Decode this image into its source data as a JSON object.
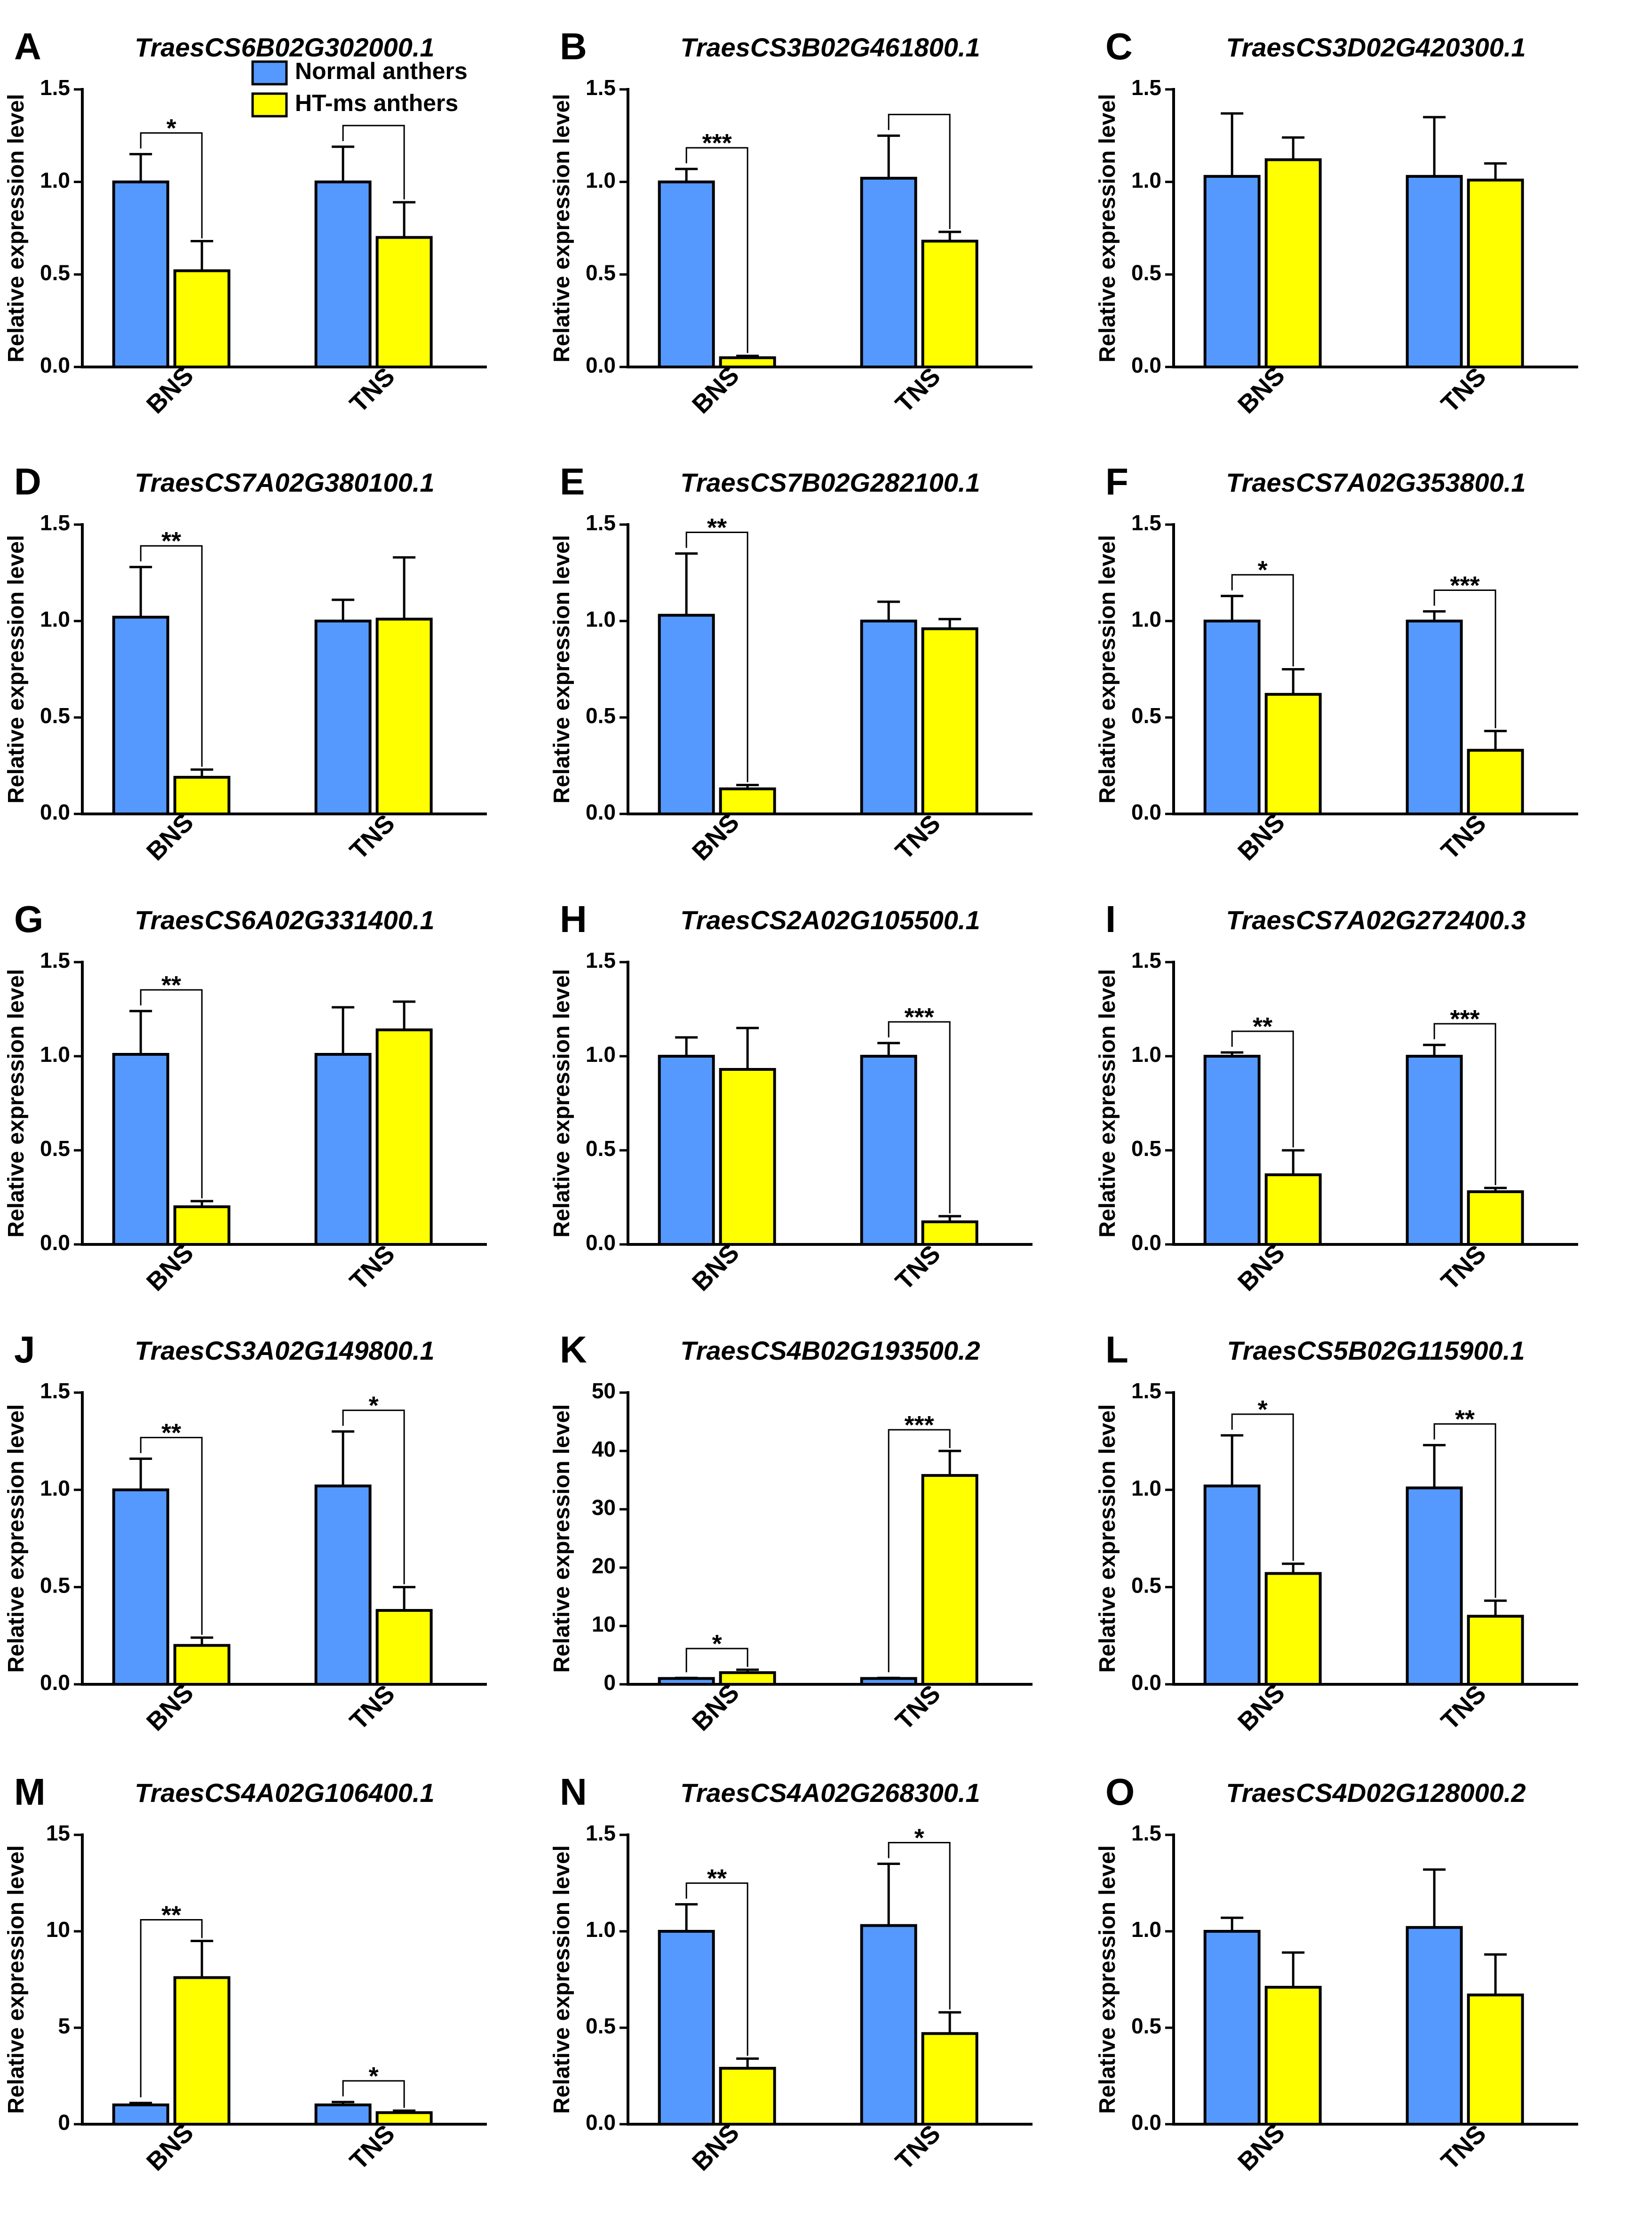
{
  "figure": {
    "legend": [
      {
        "name": "Normal anthers",
        "color": "#5599FF"
      },
      {
        "name": "HT-ms anthers",
        "color": "#FFFF00"
      }
    ],
    "ylabel": "Relative expression level"
  },
  "chart_data": [
    {
      "panel": "A",
      "type": "bar",
      "title": "TraesCS6B02G302000.1",
      "categories": [
        "BNS",
        "TNS"
      ],
      "ylabel": "Relative expression level",
      "ylim": [
        0,
        1.5
      ],
      "yticks": [
        "0.0",
        "0.5",
        "1.0",
        "1.5"
      ],
      "series": [
        {
          "name": "Normal anthers",
          "values": [
            1.0,
            1.0
          ],
          "errors": [
            0.15,
            0.19
          ]
        },
        {
          "name": "HT-ms anthers",
          "values": [
            0.52,
            0.7
          ],
          "errors": [
            0.16,
            0.19
          ]
        }
      ],
      "significance": [
        {
          "group": 0,
          "label": "*"
        },
        {
          "group": 1,
          "label": ""
        }
      ]
    },
    {
      "panel": "B",
      "type": "bar",
      "title": "TraesCS3B02G461800.1",
      "categories": [
        "BNS",
        "TNS"
      ],
      "ylabel": "Relative expression level",
      "ylim": [
        0,
        1.5
      ],
      "yticks": [
        "0.0",
        "0.5",
        "1.0",
        "1.5"
      ],
      "series": [
        {
          "name": "Normal anthers",
          "values": [
            1.0,
            1.02
          ],
          "errors": [
            0.07,
            0.23
          ]
        },
        {
          "name": "HT-ms anthers",
          "values": [
            0.05,
            0.68
          ],
          "errors": [
            0.01,
            0.05
          ]
        }
      ],
      "significance": [
        {
          "group": 0,
          "label": "***"
        },
        {
          "group": 1,
          "label": ""
        }
      ]
    },
    {
      "panel": "C",
      "type": "bar",
      "title": "TraesCS3D02G420300.1",
      "categories": [
        "BNS",
        "TNS"
      ],
      "ylabel": "Relative expression level",
      "ylim": [
        0,
        1.5
      ],
      "yticks": [
        "0.0",
        "0.5",
        "1.0",
        "1.5"
      ],
      "series": [
        {
          "name": "Normal anthers",
          "values": [
            1.03,
            1.03
          ],
          "errors": [
            0.34,
            0.32
          ]
        },
        {
          "name": "HT-ms anthers",
          "values": [
            1.12,
            1.01
          ],
          "errors": [
            0.12,
            0.09
          ]
        }
      ],
      "significance": []
    },
    {
      "panel": "D",
      "type": "bar",
      "title": "TraesCS7A02G380100.1",
      "categories": [
        "BNS",
        "TNS"
      ],
      "ylabel": "Relative expression level",
      "ylim": [
        0,
        1.5
      ],
      "yticks": [
        "0.0",
        "0.5",
        "1.0",
        "1.5"
      ],
      "series": [
        {
          "name": "Normal anthers",
          "values": [
            1.02,
            1.0
          ],
          "errors": [
            0.26,
            0.11
          ]
        },
        {
          "name": "HT-ms anthers",
          "values": [
            0.19,
            1.01
          ],
          "errors": [
            0.04,
            0.32
          ]
        }
      ],
      "significance": [
        {
          "group": 0,
          "label": "**"
        }
      ]
    },
    {
      "panel": "E",
      "type": "bar",
      "title": "TraesCS7B02G282100.1",
      "categories": [
        "BNS",
        "TNS"
      ],
      "ylabel": "Relative expression level",
      "ylim": [
        0,
        1.5
      ],
      "yticks": [
        "0.0",
        "0.5",
        "1.0",
        "1.5"
      ],
      "series": [
        {
          "name": "Normal anthers",
          "values": [
            1.03,
            1.0
          ],
          "errors": [
            0.32,
            0.1
          ]
        },
        {
          "name": "HT-ms anthers",
          "values": [
            0.13,
            0.96
          ],
          "errors": [
            0.02,
            0.05
          ]
        }
      ],
      "significance": [
        {
          "group": 0,
          "label": "**"
        }
      ]
    },
    {
      "panel": "F",
      "type": "bar",
      "title": "TraesCS7A02G353800.1",
      "categories": [
        "BNS",
        "TNS"
      ],
      "ylabel": "Relative expression level",
      "ylim": [
        0,
        1.5
      ],
      "yticks": [
        "0.0",
        "0.5",
        "1.0",
        "1.5"
      ],
      "series": [
        {
          "name": "Normal anthers",
          "values": [
            1.0,
            1.0
          ],
          "errors": [
            0.13,
            0.05
          ]
        },
        {
          "name": "HT-ms anthers",
          "values": [
            0.62,
            0.33
          ],
          "errors": [
            0.13,
            0.1
          ]
        }
      ],
      "significance": [
        {
          "group": 0,
          "label": "*"
        },
        {
          "group": 1,
          "label": "***"
        }
      ]
    },
    {
      "panel": "G",
      "type": "bar",
      "title": "TraesCS6A02G331400.1",
      "categories": [
        "BNS",
        "TNS"
      ],
      "ylabel": "Relative expression level",
      "ylim": [
        0,
        1.5
      ],
      "yticks": [
        "0.0",
        "0.5",
        "1.0",
        "1.5"
      ],
      "series": [
        {
          "name": "Normal anthers",
          "values": [
            1.01,
            1.01
          ],
          "errors": [
            0.23,
            0.25
          ]
        },
        {
          "name": "HT-ms anthers",
          "values": [
            0.2,
            1.14
          ],
          "errors": [
            0.03,
            0.15
          ]
        }
      ],
      "significance": [
        {
          "group": 0,
          "label": "**"
        }
      ]
    },
    {
      "panel": "H",
      "type": "bar",
      "title": "TraesCS2A02G105500.1",
      "categories": [
        "BNS",
        "TNS"
      ],
      "ylabel": "Relative expression level",
      "ylim": [
        0,
        1.5
      ],
      "yticks": [
        "0.0",
        "0.5",
        "1.0",
        "1.5"
      ],
      "series": [
        {
          "name": "Normal anthers",
          "values": [
            1.0,
            1.0
          ],
          "errors": [
            0.1,
            0.07
          ]
        },
        {
          "name": "HT-ms anthers",
          "values": [
            0.93,
            0.12
          ],
          "errors": [
            0.22,
            0.03
          ]
        }
      ],
      "significance": [
        {
          "group": 1,
          "label": "***"
        }
      ]
    },
    {
      "panel": "I",
      "type": "bar",
      "title": "TraesCS7A02G272400.3",
      "categories": [
        "BNS",
        "TNS"
      ],
      "ylabel": "Relative expression level",
      "ylim": [
        0,
        1.5
      ],
      "yticks": [
        "0.0",
        "0.5",
        "1.0",
        "1.5"
      ],
      "series": [
        {
          "name": "Normal anthers",
          "values": [
            1.0,
            1.0
          ],
          "errors": [
            0.02,
            0.06
          ]
        },
        {
          "name": "HT-ms anthers",
          "values": [
            0.37,
            0.28
          ],
          "errors": [
            0.13,
            0.02
          ]
        }
      ],
      "significance": [
        {
          "group": 0,
          "label": "**"
        },
        {
          "group": 1,
          "label": "***"
        }
      ]
    },
    {
      "panel": "J",
      "type": "bar",
      "title": "TraesCS3A02G149800.1",
      "categories": [
        "BNS",
        "TNS"
      ],
      "ylabel": "Relative expression level",
      "ylim": [
        0,
        1.5
      ],
      "yticks": [
        "0.0",
        "0.5",
        "1.0",
        "1.5"
      ],
      "series": [
        {
          "name": "Normal anthers",
          "values": [
            1.0,
            1.02
          ],
          "errors": [
            0.16,
            0.28
          ]
        },
        {
          "name": "HT-ms anthers",
          "values": [
            0.2,
            0.38
          ],
          "errors": [
            0.04,
            0.12
          ]
        }
      ],
      "significance": [
        {
          "group": 0,
          "label": "**"
        },
        {
          "group": 1,
          "label": "*"
        }
      ]
    },
    {
      "panel": "K",
      "type": "bar",
      "title": "TraesCS4B02G193500.2",
      "categories": [
        "BNS",
        "TNS"
      ],
      "ylabel": "Relative expression level",
      "ylim": [
        0,
        50
      ],
      "yticks": [
        "0",
        "10",
        "20",
        "30",
        "40",
        "50"
      ],
      "series": [
        {
          "name": "Normal anthers",
          "values": [
            1.0,
            1.0
          ],
          "errors": [
            0.1,
            0.1
          ]
        },
        {
          "name": "HT-ms anthers",
          "values": [
            2.0,
            35.8
          ],
          "errors": [
            0.5,
            4.2
          ]
        }
      ],
      "significance": [
        {
          "group": 0,
          "label": "*"
        },
        {
          "group": 1,
          "label": "***"
        }
      ]
    },
    {
      "panel": "L",
      "type": "bar",
      "title": "TraesCS5B02G115900.1",
      "categories": [
        "BNS",
        "TNS"
      ],
      "ylabel": "Relative expression level",
      "ylim": [
        0,
        1.5
      ],
      "yticks": [
        "0.0",
        "0.5",
        "1.0",
        "1.5"
      ],
      "series": [
        {
          "name": "Normal anthers",
          "values": [
            1.02,
            1.01
          ],
          "errors": [
            0.26,
            0.22
          ]
        },
        {
          "name": "HT-ms anthers",
          "values": [
            0.57,
            0.35
          ],
          "errors": [
            0.05,
            0.08
          ]
        }
      ],
      "significance": [
        {
          "group": 0,
          "label": "*"
        },
        {
          "group": 1,
          "label": "**"
        }
      ]
    },
    {
      "panel": "M",
      "type": "bar",
      "title": "TraesCS4A02G106400.1",
      "categories": [
        "BNS",
        "TNS"
      ],
      "ylabel": "Relative expression level",
      "ylim": [
        0,
        15
      ],
      "yticks": [
        "0",
        "5",
        "10",
        "15"
      ],
      "series": [
        {
          "name": "Normal anthers",
          "values": [
            1.0,
            1.0
          ],
          "errors": [
            0.1,
            0.15
          ]
        },
        {
          "name": "HT-ms anthers",
          "values": [
            7.6,
            0.6
          ],
          "errors": [
            1.9,
            0.1
          ]
        }
      ],
      "significance": [
        {
          "group": 0,
          "label": "**"
        },
        {
          "group": 1,
          "label": "*"
        }
      ]
    },
    {
      "panel": "N",
      "type": "bar",
      "title": "TraesCS4A02G268300.1",
      "categories": [
        "BNS",
        "TNS"
      ],
      "ylabel": "Relative expression level",
      "ylim": [
        0,
        1.5
      ],
      "yticks": [
        "0.0",
        "0.5",
        "1.0",
        "1.5"
      ],
      "series": [
        {
          "name": "Normal anthers",
          "values": [
            1.0,
            1.03
          ],
          "errors": [
            0.14,
            0.32
          ]
        },
        {
          "name": "HT-ms anthers",
          "values": [
            0.29,
            0.47
          ],
          "errors": [
            0.05,
            0.11
          ]
        }
      ],
      "significance": [
        {
          "group": 0,
          "label": "**"
        },
        {
          "group": 1,
          "label": "*"
        }
      ]
    },
    {
      "panel": "O",
      "type": "bar",
      "title": "TraesCS4D02G128000.2",
      "categories": [
        "BNS",
        "TNS"
      ],
      "ylabel": "Relative expression level",
      "ylim": [
        0,
        1.5
      ],
      "yticks": [
        "0.0",
        "0.5",
        "1.0",
        "1.5"
      ],
      "series": [
        {
          "name": "Normal anthers",
          "values": [
            1.0,
            1.02
          ],
          "errors": [
            0.07,
            0.3
          ]
        },
        {
          "name": "HT-ms anthers",
          "values": [
            0.71,
            0.67
          ],
          "errors": [
            0.18,
            0.21
          ]
        }
      ],
      "significance": []
    }
  ]
}
